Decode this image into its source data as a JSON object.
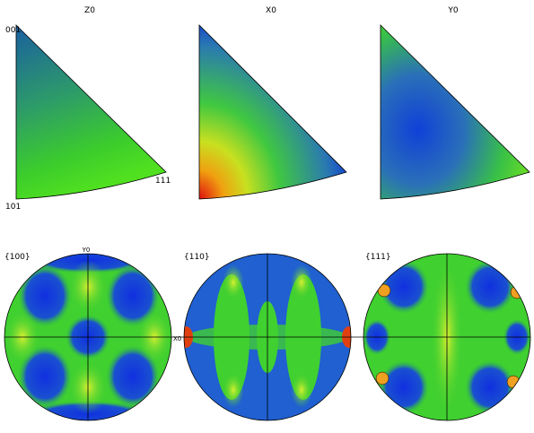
{
  "inverse_pole_figures": [
    {
      "title": "Z0",
      "corner_labels": [
        "001",
        "101",
        "111"
      ]
    },
    {
      "title": "X0"
    },
    {
      "title": "Y0"
    }
  ],
  "pole_figures": [
    {
      "label": "{100}",
      "axis_labels": [
        "Y0",
        "X0"
      ]
    },
    {
      "label": "{110}"
    },
    {
      "label": "{111}"
    }
  ]
}
